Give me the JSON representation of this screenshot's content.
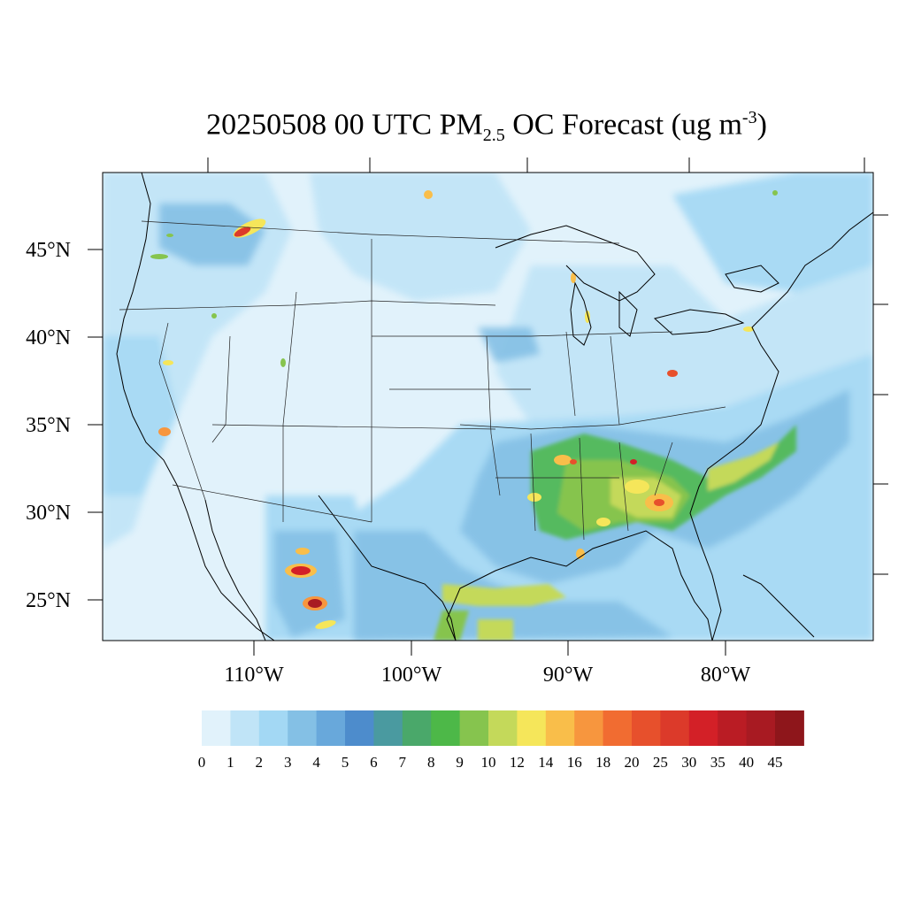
{
  "title": {
    "date_time": "20250508 00 UTC PM",
    "sub": "2.5",
    "middle": " OC Forecast (ug m",
    "sup": "-3",
    "end": ")"
  },
  "map": {
    "lat_labels": [
      "45°N",
      "40°N",
      "35°N",
      "30°N",
      "25°N"
    ],
    "lon_labels": [
      "110°W",
      "100°W",
      "90°W",
      "80°W"
    ],
    "background_color": "#e1f2fb",
    "variable": "PM2.5 organic carbon"
  },
  "colorbar": {
    "ticks": [
      "0",
      "1",
      "2",
      "3",
      "4",
      "5",
      "6",
      "7",
      "8",
      "9",
      "10",
      "12",
      "14",
      "16",
      "18",
      "20",
      "25",
      "30",
      "35",
      "40",
      "45"
    ],
    "colors": [
      "#e1f2fb",
      "#c0e4f7",
      "#a3d8f4",
      "#84c0e5",
      "#68a8db",
      "#4d8ccc",
      "#4a9aa0",
      "#4aa86a",
      "#4db848",
      "#86c44e",
      "#c4d95a",
      "#f5e65a",
      "#f9be4a",
      "#f7963e",
      "#f16c31",
      "#e7502c",
      "#dc3a2a",
      "#d32027",
      "#ba1c24",
      "#a81a22",
      "#8e161b"
    ]
  }
}
